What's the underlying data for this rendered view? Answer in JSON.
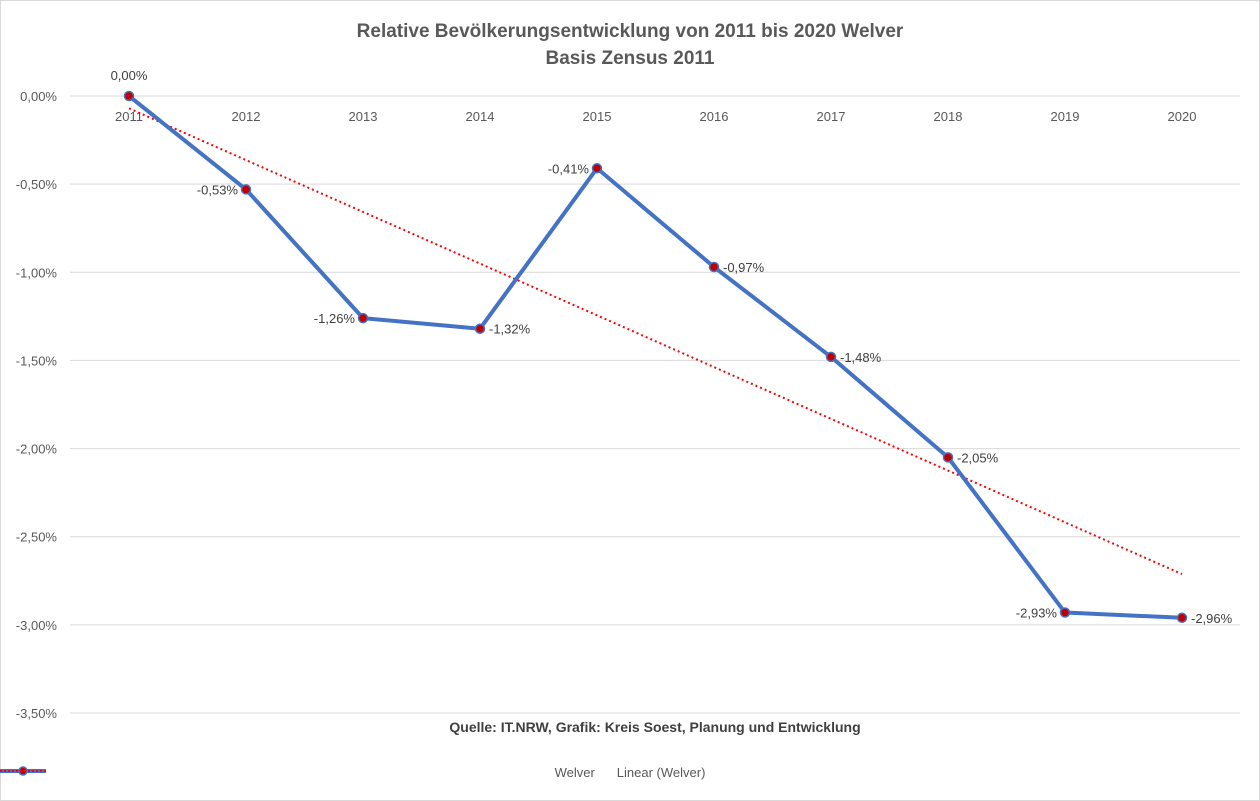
{
  "chart_data": {
    "type": "line",
    "title": "Relative Bevölkerungsentwicklung von 2011 bis 2020 Welver",
    "subtitle": "Basis Zensus 2011",
    "source": "Quelle: IT.NRW, Grafik: Kreis Soest, Planung und Entwicklung",
    "categories": [
      "2011",
      "2012",
      "2013",
      "2014",
      "2015",
      "2016",
      "2017",
      "2018",
      "2019",
      "2020"
    ],
    "series": [
      {
        "name": "Welver",
        "values": [
          0.0,
          -0.53,
          -1.26,
          -1.32,
          -0.41,
          -0.97,
          -1.48,
          -2.05,
          -2.93,
          -2.96
        ],
        "labels": [
          "0,00%",
          "-0,53%",
          "-1,26%",
          "-1,32%",
          "-0,41%",
          "-0,97%",
          "-1,48%",
          "-2,05%",
          "-2,93%",
          "-2,96%"
        ],
        "color": "#4472c4",
        "marker_color": "#c00000"
      }
    ],
    "trendline": {
      "name": "Linear (Welver)",
      "type": "linear",
      "color": "#ff0000",
      "style": "dotted"
    },
    "y_ticks": [
      0,
      -0.5,
      -1.0,
      -1.5,
      -2.0,
      -2.5,
      -3.0,
      -3.5
    ],
    "y_tick_labels": [
      "0,00%",
      "-0,50%",
      "-1,00%",
      "-1,50%",
      "-2,00%",
      "-2,50%",
      "-3,00%",
      "-3,50%"
    ],
    "ylim": [
      -3.5,
      0
    ],
    "xlabel": "",
    "ylabel": "",
    "grid": "horizontal",
    "legend_position": "bottom"
  }
}
